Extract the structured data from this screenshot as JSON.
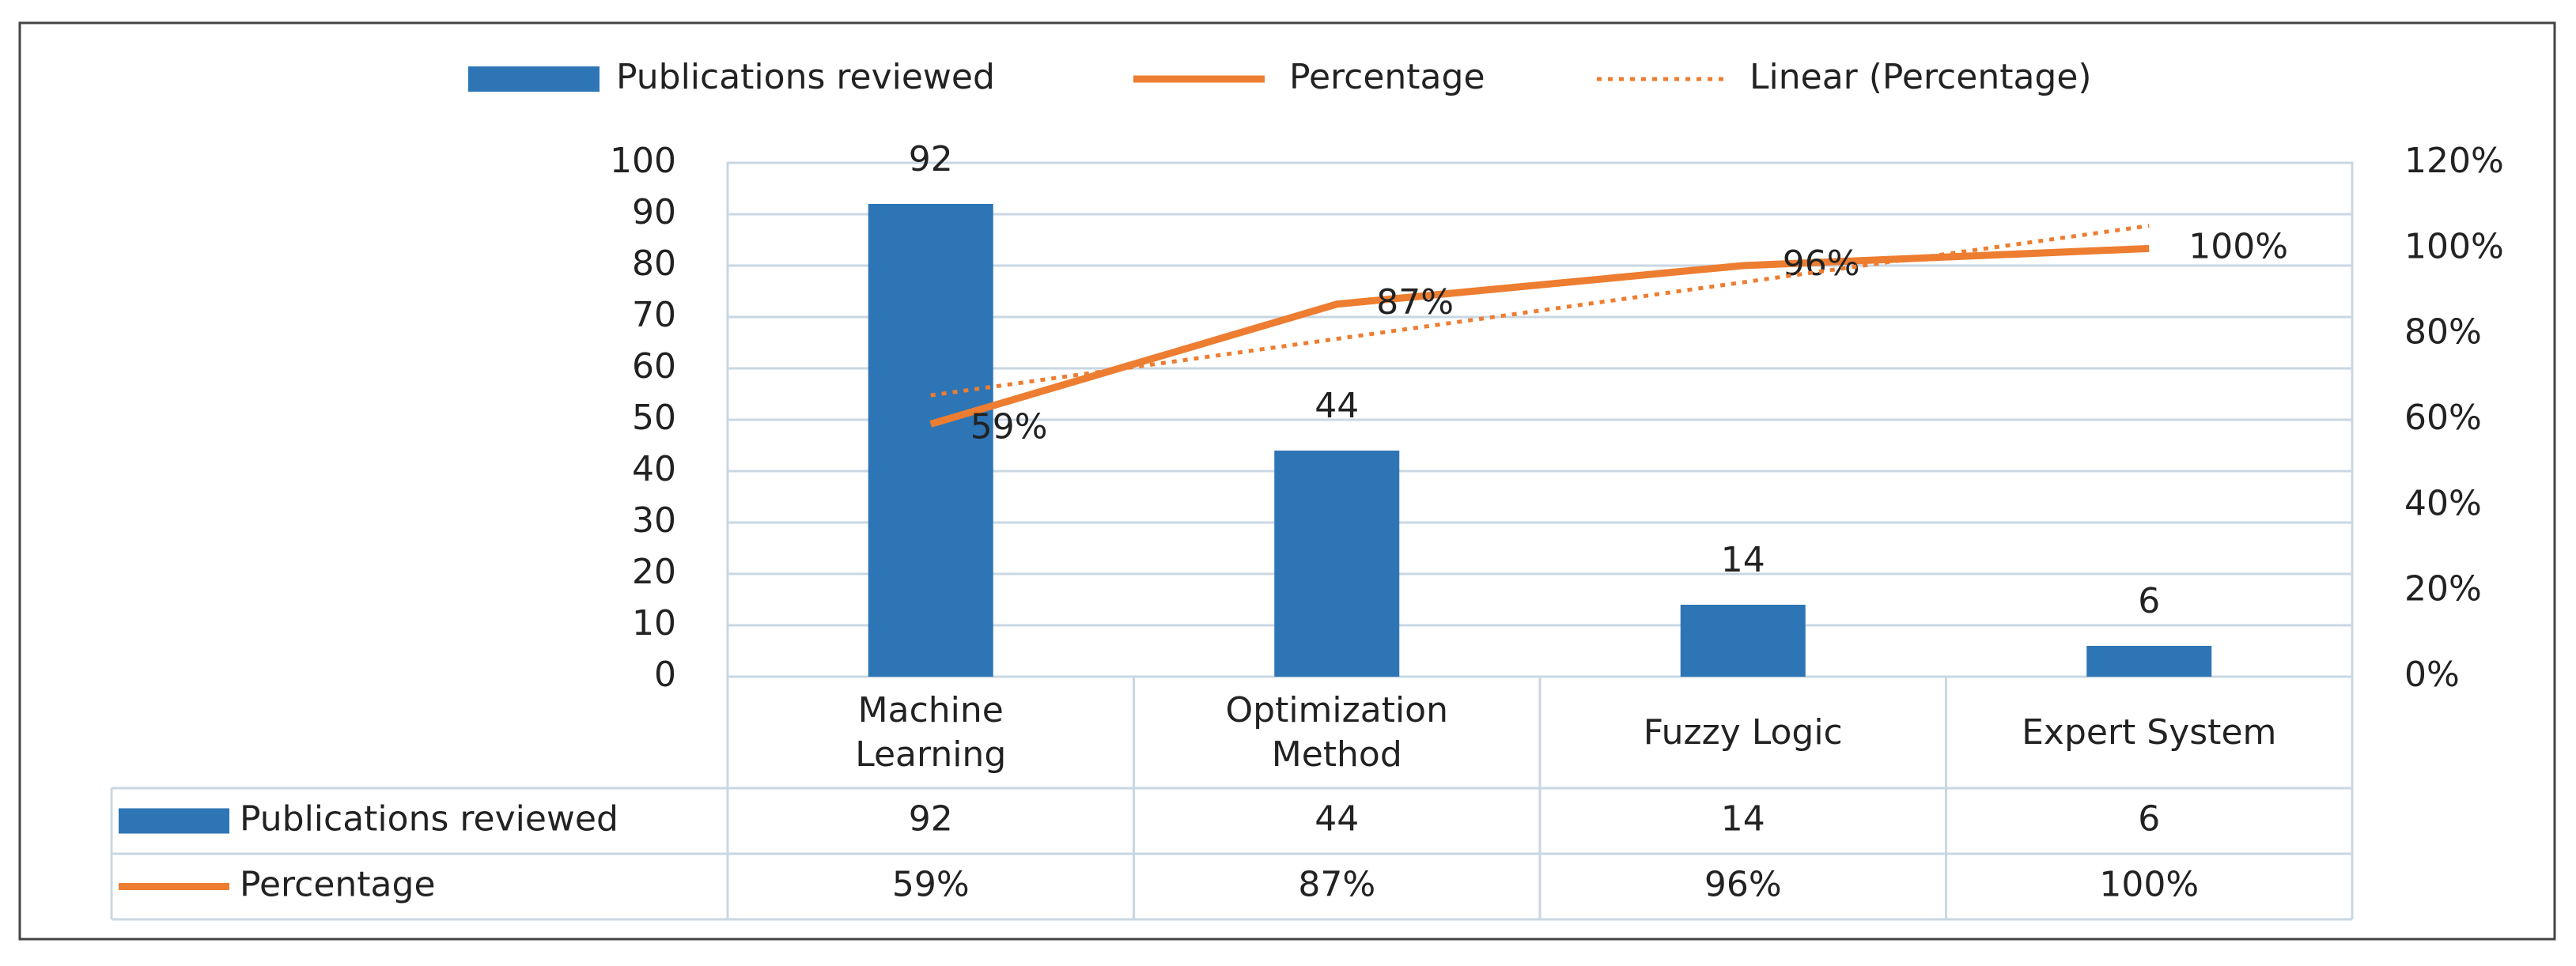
{
  "chart_data": {
    "type": "bar",
    "categories": [
      "Machine Learning",
      "Optimization Method",
      "Fuzzy Logic",
      "Expert System"
    ],
    "series": [
      {
        "name": "Publications reviewed",
        "type": "bar",
        "color": "#2e75b6",
        "values": [
          92,
          44,
          14,
          6
        ]
      },
      {
        "name": "Percentage",
        "type": "line",
        "axis": "y2",
        "color": "#ed7d31",
        "values": [
          59,
          87,
          96,
          100
        ],
        "value_labels": [
          "59%",
          "87%",
          "96%",
          "100%"
        ]
      },
      {
        "name": "Linear (Percentage)",
        "type": "line",
        "axis": "y2",
        "color": "#ed7d31",
        "dash": "dotted",
        "values": [
          65.7,
          78.9,
          92.1,
          105.3
        ]
      }
    ],
    "ylim": [
      0,
      100
    ],
    "yticks": [
      0,
      10,
      20,
      30,
      40,
      50,
      60,
      70,
      80,
      90,
      100
    ],
    "y2lim": [
      0,
      120
    ],
    "y2ticks": [
      {
        "value": 0,
        "label": "0%"
      },
      {
        "value": 20,
        "label": "20%"
      },
      {
        "value": 40,
        "label": "40%"
      },
      {
        "value": 60,
        "label": "60%"
      },
      {
        "value": 80,
        "label": "80%"
      },
      {
        "value": 100,
        "label": "100%"
      },
      {
        "value": 120,
        "label": "120%"
      }
    ],
    "grid": true,
    "legend": "top",
    "data_table": true
  }
}
